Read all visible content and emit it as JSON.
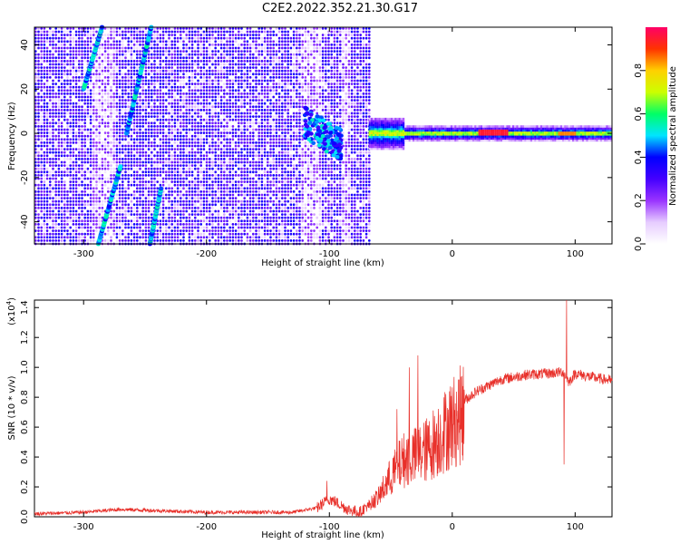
{
  "title": "C2E2.2022.352.21.30.G17",
  "chart_data": [
    {
      "type": "heatmap",
      "xlabel": "Height of straight line (km)",
      "ylabel": "Frequency (Hz)",
      "xlim": [
        -340,
        130
      ],
      "ylim": [
        -50,
        48
      ],
      "x_ticks": [
        -300,
        -200,
        -100,
        0,
        100
      ],
      "y_ticks": [
        -40,
        -20,
        0,
        20,
        40
      ],
      "colorbar": {
        "label": "Normalized spectral amplitude",
        "range": [
          0.0,
          1.0
        ],
        "ticks": [
          0.0,
          0.2,
          0.4,
          0.6,
          0.8
        ],
        "colors": [
          "#ffffff",
          "#e6ccff",
          "#9933ff",
          "#4400ff",
          "#0000ff",
          "#00e5ff",
          "#00ff66",
          "#ccff00",
          "#ffd000",
          "#ff3300",
          "#ff0066"
        ]
      },
      "features": {
        "noise_region_km": [
          -340,
          -68
        ],
        "signal_region_km": [
          -68,
          130
        ],
        "diagonal_streaks": [
          {
            "x0": -288,
            "y0": -50,
            "x1": -270,
            "y1": -15
          },
          {
            "x0": -265,
            "y0": 0,
            "x1": -245,
            "y1": 48
          },
          {
            "x0": -300,
            "y0": 20,
            "x1": -285,
            "y1": 48
          },
          {
            "x0": -246,
            "y0": -50,
            "x1": -237,
            "y1": -25
          }
        ]
      }
    },
    {
      "type": "line",
      "xlabel": "Height of straight line (km)",
      "ylabel": "SNR (10 * v/v)",
      "y_scale_note": "(x10",
      "y_scale_exp": "4",
      "y_scale_close": ")",
      "xlim": [
        -340,
        130
      ],
      "ylim": [
        0.0,
        1.45
      ],
      "x_ticks": [
        -300,
        -200,
        -100,
        0,
        100
      ],
      "y_ticks": [
        0.0,
        0.2,
        0.4,
        0.6,
        0.8,
        1.0,
        1.2,
        1.4
      ],
      "color": "#e8302a",
      "series_envelope": {
        "x": [
          -340,
          -300,
          -270,
          -200,
          -130,
          -110,
          -100,
          -95,
          -85,
          -75,
          -60,
          -50,
          -40,
          -30,
          -20,
          -10,
          0,
          10,
          20,
          30,
          40,
          60,
          80,
          90,
          95,
          100,
          110,
          130
        ],
        "y": [
          0.02,
          0.03,
          0.05,
          0.03,
          0.03,
          0.06,
          0.12,
          0.1,
          0.05,
          0.03,
          0.15,
          0.3,
          0.42,
          0.45,
          0.5,
          0.6,
          0.7,
          0.78,
          0.84,
          0.88,
          0.92,
          0.95,
          0.96,
          0.97,
          0.9,
          0.96,
          0.94,
          0.91
        ]
      },
      "spikes": [
        {
          "x": -45,
          "y": 0.72
        },
        {
          "x": -35,
          "y": 1.0
        },
        {
          "x": -28,
          "y": 1.08
        },
        {
          "x": -102,
          "y": 0.24
        },
        {
          "x": 93,
          "y": 1.45
        },
        {
          "x": 91,
          "y": 0.35
        }
      ]
    }
  ]
}
